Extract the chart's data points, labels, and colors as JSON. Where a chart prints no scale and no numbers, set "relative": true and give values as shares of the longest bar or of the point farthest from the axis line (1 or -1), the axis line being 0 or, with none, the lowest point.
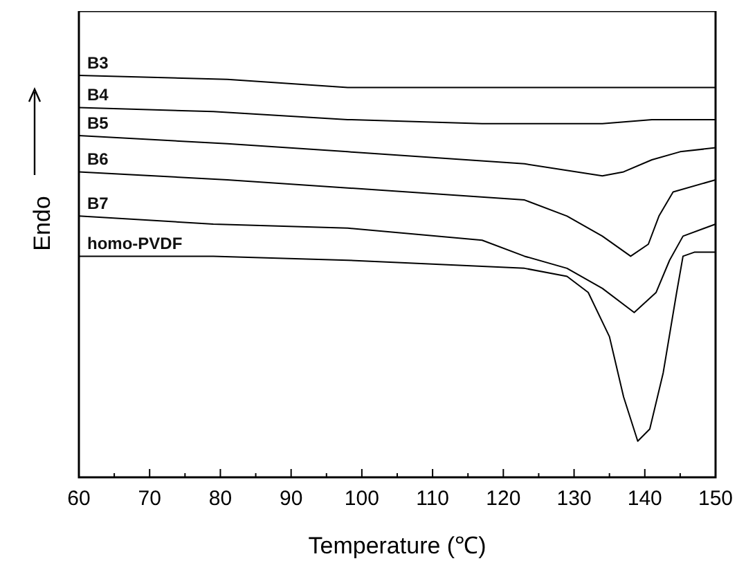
{
  "chart_data": {
    "type": "line",
    "relative": true,
    "xlabel": "Temperature (℃)",
    "ylabel": "Endo",
    "xlim": [
      60,
      150
    ],
    "xticks": [
      60,
      {
        "value": 65,
        "label": null
      },
      70,
      {
        "value": 75,
        "label": null
      },
      80,
      {
        "value": 85,
        "label": null
      },
      90,
      {
        "value": 95,
        "label": null
      },
      100,
      {
        "value": 105,
        "label": null
      },
      110,
      {
        "value": 115,
        "label": null
      },
      120,
      {
        "value": 125,
        "label": null
      },
      130,
      {
        "value": 135,
        "label": null
      },
      140,
      {
        "value": 145,
        "label": null
      },
      150
    ],
    "grid": false,
    "legend": false,
    "marker": "none",
    "line_style": "solid",
    "series": [
      {
        "name": "B3",
        "color": "#000000",
        "x": [
          60,
          81,
          98,
          111,
          150
        ],
        "values": [
          1.0,
          0.99,
          0.97,
          0.97,
          0.97
        ]
      },
      {
        "name": "B4",
        "color": "#000000",
        "x": [
          60,
          79,
          98,
          117,
          134,
          141,
          150
        ],
        "values": [
          0.92,
          0.91,
          0.89,
          0.88,
          0.88,
          0.89,
          0.89
        ]
      },
      {
        "name": "B5",
        "color": "#000000",
        "x": [
          60,
          81,
          98,
          123,
          134,
          137,
          141,
          145,
          150
        ],
        "values": [
          0.85,
          0.83,
          0.81,
          0.78,
          0.75,
          0.76,
          0.79,
          0.81,
          0.82
        ]
      },
      {
        "name": "B6",
        "color": "#000000",
        "x": [
          60,
          81,
          98,
          123,
          129,
          134,
          138,
          140.5,
          142,
          144,
          150
        ],
        "values": [
          0.76,
          0.74,
          0.72,
          0.69,
          0.65,
          0.6,
          0.55,
          0.58,
          0.65,
          0.71,
          0.74
        ]
      },
      {
        "name": "B7",
        "color": "#000000",
        "x": [
          60,
          79,
          98,
          117,
          123,
          129,
          134,
          138.5,
          141.6,
          143.5,
          145.4,
          150
        ],
        "values": [
          0.65,
          0.63,
          0.62,
          0.59,
          0.55,
          0.52,
          0.47,
          0.41,
          0.46,
          0.54,
          0.6,
          0.63
        ]
      },
      {
        "name": "homo-PVDF",
        "color": "#000000",
        "x": [
          60,
          79,
          98,
          123,
          129,
          132,
          135,
          137,
          139,
          140.7,
          142.6,
          144.5,
          145.4,
          147,
          150
        ],
        "values": [
          0.55,
          0.55,
          0.54,
          0.52,
          0.5,
          0.46,
          0.35,
          0.2,
          0.09,
          0.12,
          0.26,
          0.46,
          0.55,
          0.56,
          0.56
        ]
      }
    ]
  }
}
